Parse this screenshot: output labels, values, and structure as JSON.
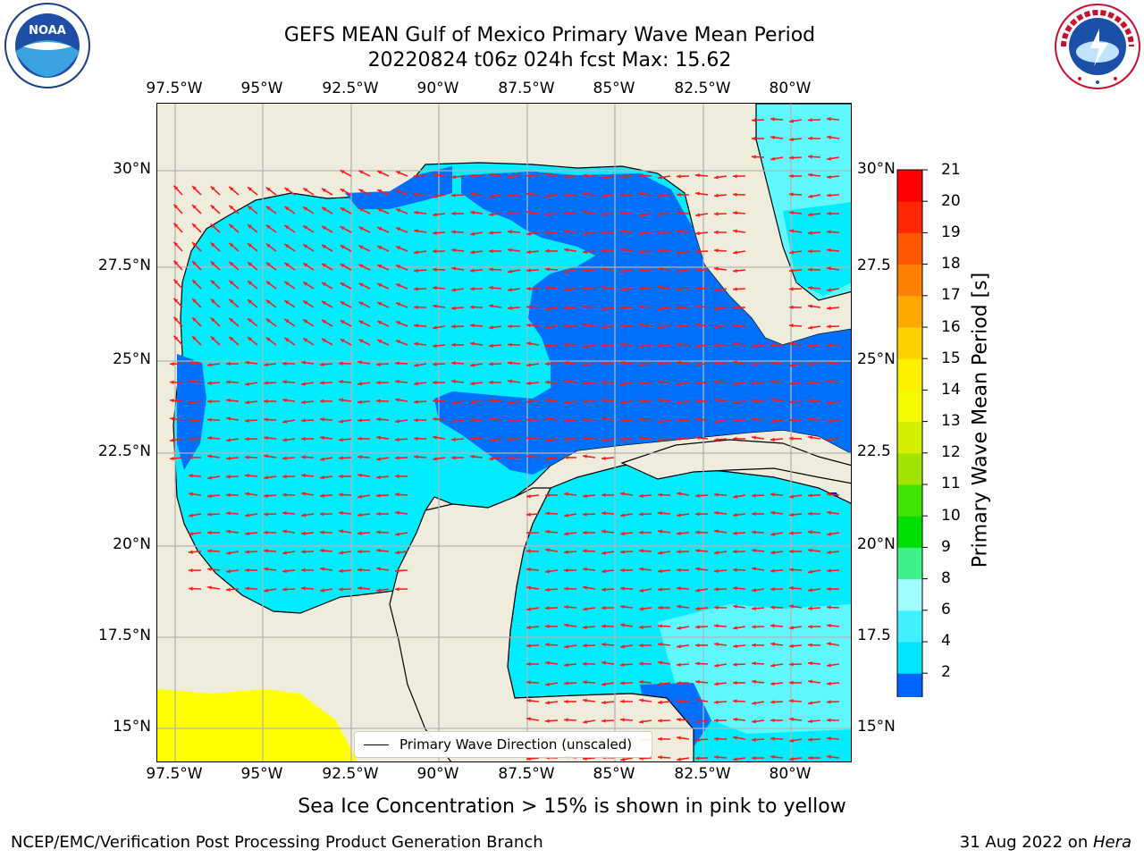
{
  "header": {
    "title_line1": "GEFS MEAN Gulf of Mexico Primary Wave Mean Period",
    "title_line2": "20220824 t06z 024h fcst   Max: 15.62"
  },
  "axes": {
    "lon_labels": [
      "97.5°W",
      "95°W",
      "92.5°W",
      "90°W",
      "87.5°W",
      "85°W",
      "82.5°W",
      "80°W"
    ],
    "lat_labels_left": [
      "30°N",
      "27.5°N",
      "25°N",
      "22.5°N",
      "20°N",
      "17.5°N",
      "15°N"
    ],
    "lat_labels_right": [
      "30°N",
      "27.5",
      "25°N",
      "22.5",
      "20°N",
      "17.5",
      "15°N"
    ]
  },
  "colorbar": {
    "title": "Primary Wave Mean Period [s]",
    "ticks": [
      "21",
      "20",
      "19",
      "18",
      "17",
      "16",
      "15",
      "14",
      "13",
      "12",
      "11",
      "10",
      "9",
      "8",
      "6",
      "4",
      "2"
    ],
    "colors": [
      "#0000ee",
      "#0064ff",
      "#00e4ff",
      "#40f0ff",
      "#a0fcff",
      "#40f088",
      "#00e000",
      "#40e400",
      "#a0e400",
      "#d4f000",
      "#f4f800",
      "#fff000",
      "#ffd000",
      "#ffa800",
      "#ff8000",
      "#ff5800",
      "#ff2800",
      "#ff0000"
    ]
  },
  "legend": {
    "label": "Primary Wave Direction (unscaled)"
  },
  "caption": "Sea Ice Concentration > 15% is shown in pink to yellow",
  "footer": {
    "left": "NCEP/EMC/Verification Post Processing Product Generation Branch",
    "right_date": "31 Aug 2022 on ",
    "right_host": "Hera"
  },
  "logos": {
    "left": "NOAA",
    "right": "NATIONAL WEATHER SERVICE"
  },
  "chart_data": {
    "type": "heatmap",
    "title": "GEFS MEAN Gulf of Mexico Primary Wave Mean Period",
    "subtitle": "20220824 t06z 024h fcst   Max: 15.62",
    "x_range": [
      "98.5°W",
      "78.5°W"
    ],
    "y_range": [
      "14°N",
      "31.5°N"
    ],
    "grid": true,
    "colorbar_label": "Primary Wave Mean Period [s]",
    "colorbar_levels": [
      2,
      4,
      6,
      8,
      9,
      10,
      11,
      12,
      13,
      14,
      15,
      16,
      17,
      18,
      19,
      20,
      21
    ],
    "max": 15.62,
    "vector_field": "Primary Wave Direction (unscaled)",
    "note": "Sea Ice Concentration > 15% is shown in pink to yellow"
  }
}
